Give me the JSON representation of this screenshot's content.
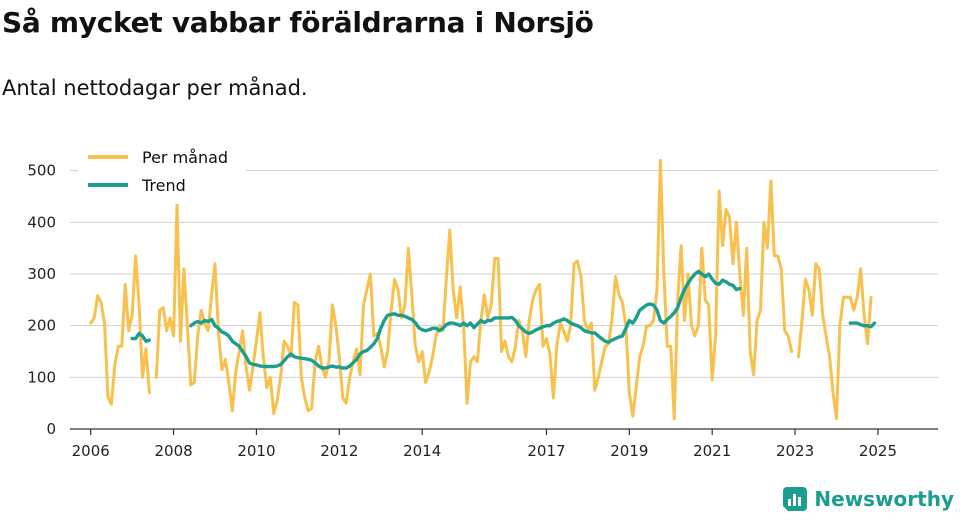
{
  "title": "Så mycket vabbar föräldrarna i Norsjö",
  "subtitle": "Antal nettodagar per månad.",
  "brand": "Newsworthy",
  "colors": {
    "monthly": "#f8c14e",
    "trend": "#1b9e8f",
    "grid": "#d0d0d0",
    "axis": "#333333"
  },
  "chart_data": {
    "type": "line",
    "title": "Så mycket vabbar föräldrarna i Norsjö",
    "subtitle": "Antal nettodagar per månad.",
    "xlabel": "",
    "ylabel": "",
    "ylim": [
      0,
      540
    ],
    "xlim": [
      2005.5,
      2026.45
    ],
    "yticks": [
      0,
      100,
      200,
      300,
      400,
      500
    ],
    "xticks": [
      {
        "value": 2006,
        "label": "2006"
      },
      {
        "value": 2008,
        "label": "2008"
      },
      {
        "value": 2010,
        "label": "2010"
      },
      {
        "value": 2012,
        "label": "2012"
      },
      {
        "value": 2014,
        "label": "2014"
      },
      {
        "value": 2017,
        "label": "2017"
      },
      {
        "value": 2019,
        "label": "2019"
      },
      {
        "value": 2021,
        "label": "2021"
      },
      {
        "value": 2023,
        "label": "2023"
      },
      {
        "value": 2025,
        "label": "2025"
      }
    ],
    "legend": "top-left",
    "series": [
      {
        "name": "Per månad",
        "key": "monthly",
        "start": 2006.0,
        "values": [
          205,
          215,
          258,
          245,
          205,
          62,
          48,
          125,
          160,
          160,
          280,
          190,
          220,
          335,
          240,
          100,
          155,
          70,
          null,
          100,
          230,
          235,
          190,
          215,
          180,
          435,
          170,
          310,
          200,
          85,
          90,
          180,
          230,
          205,
          190,
          260,
          320,
          185,
          115,
          135,
          90,
          35,
          110,
          150,
          190,
          120,
          75,
          120,
          170,
          225,
          140,
          80,
          100,
          30,
          55,
          100,
          170,
          160,
          140,
          245,
          240,
          100,
          60,
          35,
          40,
          130,
          160,
          120,
          100,
          130,
          240,
          200,
          140,
          60,
          50,
          100,
          130,
          155,
          105,
          240,
          270,
          300,
          180,
          185,
          160,
          120,
          150,
          230,
          290,
          270,
          215,
          240,
          350,
          260,
          160,
          130,
          150,
          90,
          110,
          140,
          180,
          200,
          190,
          290,
          385,
          270,
          215,
          275,
          200,
          50,
          130,
          140,
          130,
          210,
          260,
          215,
          240,
          330,
          330,
          150,
          170,
          140,
          130,
          160,
          210,
          190,
          140,
          210,
          250,
          270,
          280,
          160,
          175,
          145,
          60,
          160,
          205,
          190,
          170,
          200,
          320,
          325,
          295,
          210,
          190,
          205,
          75,
          100,
          130,
          160,
          165,
          215,
          295,
          260,
          245,
          200,
          70,
          25,
          80,
          140,
          160,
          200,
          200,
          210,
          270,
          520,
          300,
          160,
          160,
          20,
          250,
          355,
          210,
          300,
          200,
          180,
          200,
          350,
          250,
          240,
          95,
          180,
          460,
          355,
          425,
          410,
          320,
          400,
          300,
          220,
          350,
          150,
          105,
          210,
          230,
          400,
          350,
          480,
          335,
          335,
          310,
          190,
          180,
          150,
          null,
          140,
          210,
          290,
          270,
          220,
          320,
          310,
          220,
          180,
          140,
          70,
          20,
          200,
          255,
          255,
          255,
          230,
          255,
          310,
          220,
          165,
          255
        ]
      },
      {
        "name": "Trend",
        "key": "trend",
        "start": 2006.0,
        "values": [
          null,
          null,
          null,
          null,
          null,
          null,
          null,
          null,
          null,
          null,
          null,
          null,
          175,
          175,
          185,
          180,
          170,
          172,
          null,
          null,
          null,
          null,
          null,
          null,
          null,
          null,
          null,
          null,
          null,
          200,
          205,
          208,
          205,
          210,
          208,
          212,
          200,
          195,
          188,
          185,
          180,
          170,
          165,
          160,
          150,
          140,
          128,
          125,
          124,
          122,
          121,
          121,
          121,
          121,
          122,
          125,
          132,
          140,
          145,
          140,
          138,
          137,
          136,
          135,
          133,
          128,
          122,
          118,
          118,
          120,
          122,
          120,
          120,
          118,
          118,
          122,
          128,
          135,
          145,
          150,
          152,
          158,
          165,
          175,
          195,
          210,
          220,
          222,
          223,
          220,
          220,
          218,
          215,
          212,
          206,
          196,
          192,
          190,
          192,
          195,
          195,
          190,
          195,
          202,
          205,
          205,
          203,
          200,
          205,
          200,
          205,
          196,
          203,
          210,
          206,
          210,
          210,
          215,
          215,
          215,
          215,
          215,
          216,
          210,
          200,
          194,
          188,
          185,
          188,
          192,
          195,
          198,
          200,
          200,
          205,
          208,
          210,
          213,
          210,
          205,
          202,
          200,
          196,
          190,
          188,
          186,
          186,
          180,
          175,
          170,
          168,
          172,
          175,
          178,
          180,
          195,
          210,
          205,
          215,
          230,
          235,
          240,
          242,
          240,
          230,
          210,
          205,
          212,
          218,
          225,
          235,
          255,
          270,
          282,
          292,
          300,
          305,
          300,
          295,
          300,
          290,
          282,
          280,
          288,
          285,
          280,
          278,
          270,
          272,
          null,
          null,
          null,
          null,
          null,
          null,
          null,
          null,
          null,
          null,
          null,
          null,
          null,
          null,
          null,
          null,
          null,
          null,
          null,
          null,
          null,
          null,
          null,
          null,
          null,
          null,
          null,
          null,
          null,
          null,
          null,
          205,
          205,
          205,
          202,
          200,
          200,
          198,
          205
        ]
      }
    ]
  }
}
